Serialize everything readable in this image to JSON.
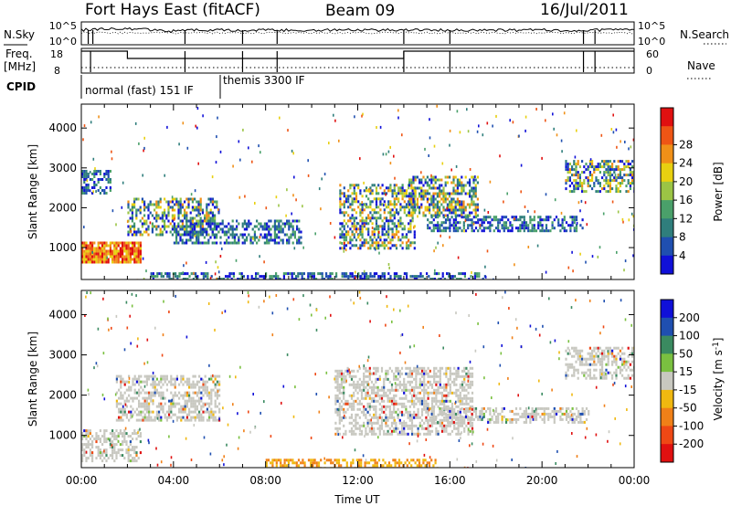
{
  "header": {
    "station": "Fort Hays East (fitACF)",
    "beam": "Beam 09",
    "date": "16/Jul/2011"
  },
  "noise_panel": {
    "left_label": "N.Sky",
    "left_ticks": [
      "10^5",
      "10^0"
    ],
    "right_label": "N.Search",
    "right_ticks": [
      "10^5",
      "10^0"
    ]
  },
  "freq_panel": {
    "left_label_1": "Freq.",
    "left_label_2": "[MHz]",
    "left_ticks": [
      "18",
      "8"
    ],
    "right_label": "Nave",
    "right_ticks": [
      "60",
      "0"
    ]
  },
  "cpid_panel": {
    "label": "CPID",
    "modes": [
      "normal (fast) 151 IF",
      "themis 3300 IF"
    ]
  },
  "colors": {
    "power": [
      "#1010d8",
      "#1f4fb0",
      "#2f7e7c",
      "#4aa06a",
      "#9bc445",
      "#e8d010",
      "#f09018",
      "#ee5515",
      "#e01010"
    ],
    "velocity": [
      "#1010d8",
      "#1f4fb0",
      "#3a8a60",
      "#7ac040",
      "#c8c8c0",
      "#f0b810",
      "#f08018",
      "#ee4815",
      "#e01010"
    ]
  },
  "chart_data": [
    {
      "type": "heatmap",
      "panel": "power",
      "xlabel": "",
      "ylabel": "Slant Range [km]",
      "xlim": [
        "00:00",
        "24:00"
      ],
      "ylim": [
        200,
        4600
      ],
      "yticks": [
        "1000",
        "2000",
        "3000",
        "4000"
      ],
      "colorbar_label": "Power [dB]",
      "colorbar_range": [
        0,
        32
      ],
      "colorbar_ticks": [
        "4",
        "8",
        "12",
        "16",
        "20",
        "24",
        "28"
      ],
      "regions": [
        {
          "t0": 0.0,
          "t1": 2.6,
          "r0": 600,
          "r1": 1150,
          "level": "high"
        },
        {
          "t0": 0.0,
          "t1": 1.3,
          "r0": 2350,
          "r1": 2950,
          "level": "low"
        },
        {
          "t0": 2.0,
          "t1": 6.0,
          "r0": 1350,
          "r1": 2250,
          "level": "mid"
        },
        {
          "t0": 4.0,
          "t1": 9.5,
          "r0": 1100,
          "r1": 1700,
          "level": "low"
        },
        {
          "t0": 11.2,
          "t1": 14.5,
          "r0": 1000,
          "r1": 2600,
          "level": "mid"
        },
        {
          "t0": 14.2,
          "t1": 17.2,
          "r0": 1800,
          "r1": 2800,
          "level": "mid"
        },
        {
          "t0": 15.0,
          "t1": 21.8,
          "r0": 1400,
          "r1": 1800,
          "level": "low"
        },
        {
          "t0": 21.0,
          "t1": 24.0,
          "r0": 2400,
          "r1": 3200,
          "level": "mid"
        },
        {
          "t0": 3.0,
          "t1": 17.5,
          "r0": 220,
          "r1": 380,
          "level": "low"
        }
      ]
    },
    {
      "type": "heatmap",
      "panel": "velocity",
      "xlabel": "Time UT",
      "ylabel": "Slant Range [km]",
      "xlim": [
        "00:00",
        "24:00"
      ],
      "ylim": [
        200,
        4600
      ],
      "xticks": [
        "00:00",
        "04:00",
        "08:00",
        "12:00",
        "16:00",
        "20:00",
        "00:00"
      ],
      "yticks": [
        "1000",
        "2000",
        "3000",
        "4000"
      ],
      "colorbar_label": "Velocity [m s^-1]",
      "colorbar_ticks": [
        "200",
        "100",
        "50",
        "15",
        "-15",
        "-50",
        "-100",
        "-200"
      ],
      "regions": [
        {
          "t0": 0.0,
          "t1": 2.6,
          "r0": 400,
          "r1": 1150,
          "level": "gray"
        },
        {
          "t0": 1.5,
          "t1": 6.0,
          "r0": 1350,
          "r1": 2500,
          "level": "gray"
        },
        {
          "t0": 11.0,
          "t1": 17.0,
          "r0": 1000,
          "r1": 2700,
          "level": "gray"
        },
        {
          "t0": 15.0,
          "t1": 22.0,
          "r0": 1300,
          "r1": 1700,
          "level": "gray"
        },
        {
          "t0": 21.0,
          "t1": 24.0,
          "r0": 2400,
          "r1": 3200,
          "level": "gray"
        },
        {
          "t0": 8.0,
          "t1": 15.5,
          "r0": 200,
          "r1": 420,
          "level": "negative"
        }
      ]
    }
  ]
}
